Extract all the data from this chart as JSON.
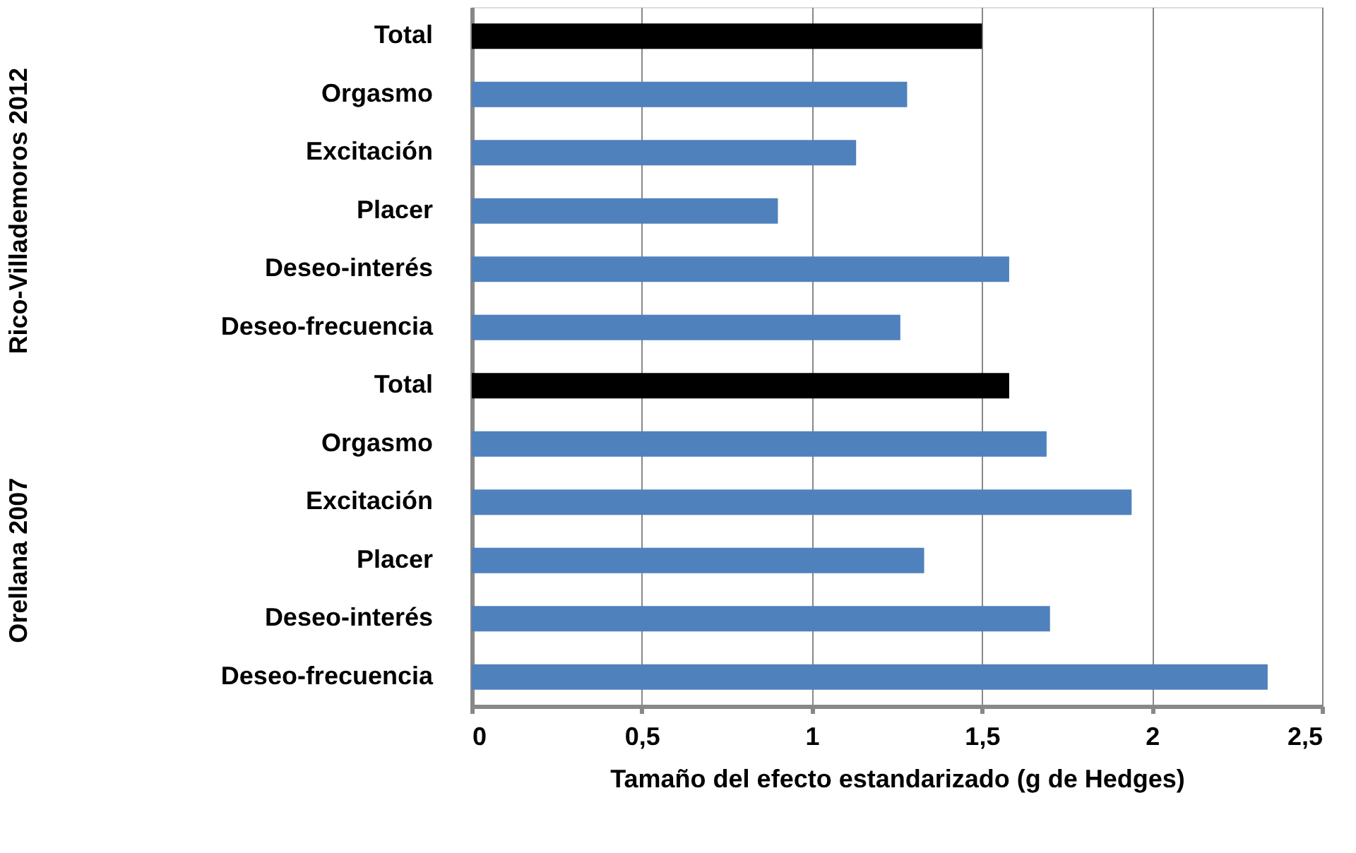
{
  "chart_data": {
    "type": "bar",
    "orientation": "horizontal",
    "xlabel": "Tamaño del efecto estandarizado (g de Hedges)",
    "categories": [
      "Total",
      "Orgasmo",
      "Excitación",
      "Placer",
      "Deseo-interés",
      "Deseo-frecuencia",
      "Total",
      "Orgasmo",
      "Excitación",
      "Placer",
      "Deseo-interés",
      "Deseo-frecuencia"
    ],
    "values": [
      1.5,
      1.28,
      1.13,
      0.9,
      1.58,
      1.26,
      1.58,
      1.69,
      1.94,
      1.33,
      1.7,
      2.34
    ],
    "colors": [
      "#000000",
      "#4f81bd",
      "#4f81bd",
      "#4f81bd",
      "#4f81bd",
      "#4f81bd",
      "#000000",
      "#4f81bd",
      "#4f81bd",
      "#4f81bd",
      "#4f81bd",
      "#4f81bd"
    ],
    "xlim": [
      0,
      2.5
    ],
    "xticks": [
      {
        "value": 0,
        "label": "0"
      },
      {
        "value": 0.5,
        "label": "0,5"
      },
      {
        "value": 1,
        "label": "1"
      },
      {
        "value": 1.5,
        "label": "1,5"
      },
      {
        "value": 2,
        "label": "2"
      },
      {
        "value": 2.5,
        "label": "2,5"
      }
    ],
    "annotations": [
      "Rico-Villademoros 2012",
      "Orellana 2007"
    ],
    "grid": "x"
  }
}
